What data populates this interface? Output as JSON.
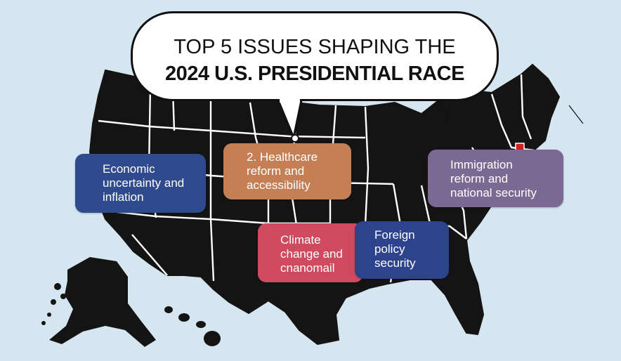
{
  "title": {
    "line1": "TOP 5 ISSUES SHAPING THE",
    "line2": "2024 U.S. PRESIDENTIAL RACE"
  },
  "issues": [
    {
      "lines": [
        "Economic",
        "uncertainty and",
        "inflation"
      ],
      "color": "#2f4b8d"
    },
    {
      "lines": [
        "2. Healthcare",
        "reform and",
        "accessibility"
      ],
      "color": "#c47f54"
    },
    {
      "lines": [
        "Immigration",
        "reform and",
        "national security"
      ],
      "color": "#7b6993"
    },
    {
      "lines": [
        "Climate",
        "change and",
        "cnanomail"
      ],
      "color": "#cf4a5f"
    },
    {
      "lines": [
        "Foreign",
        "policy",
        "security"
      ],
      "color": "#2d438b"
    }
  ],
  "colors": {
    "background": "#d5e6f0",
    "land": "#141414",
    "borders": "#ffffff",
    "accent_marker": "#d02020"
  }
}
